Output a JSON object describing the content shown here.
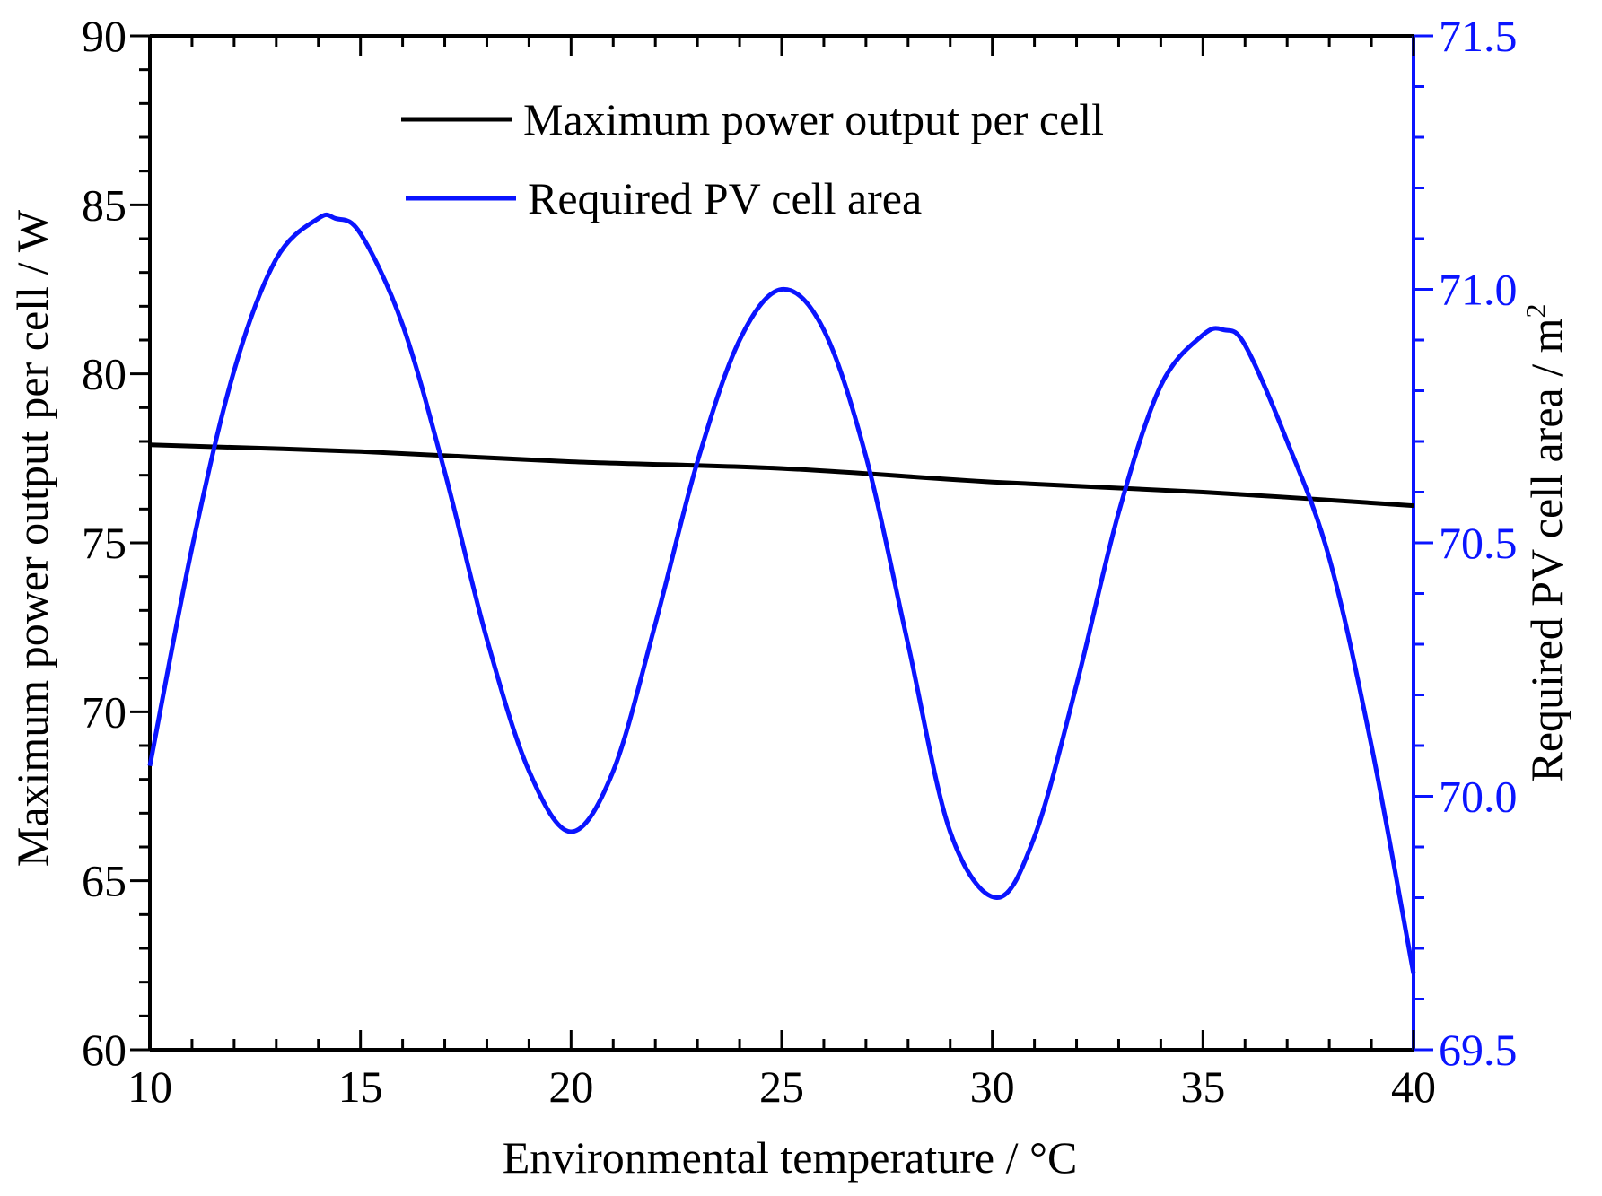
{
  "chart_data": {
    "type": "line",
    "title": "",
    "xlabel": "Environmental temperature /  °C",
    "ylabel_left": "Maximum power output per cell / W",
    "ylabel_right": "Required PV cell area / m",
    "ylabel_right_superscript": "2",
    "xlim": [
      10,
      40
    ],
    "ylim_left": [
      60,
      90
    ],
    "ylim_right": [
      69.5,
      71.5
    ],
    "x_ticks": [
      "10",
      "15",
      "20",
      "25",
      "30",
      "35",
      "40"
    ],
    "y_left_ticks": [
      "60",
      "65",
      "70",
      "75",
      "80",
      "85",
      "90"
    ],
    "y_right_ticks": [
      "69.5",
      "70.0",
      "70.5",
      "71.0",
      "71.5"
    ],
    "grid": false,
    "legend_position": "top-center",
    "colors": {
      "power": "#000000",
      "area": "#0a14ff"
    },
    "series": [
      {
        "name": "Maximum power output per cell",
        "axis": "left",
        "x": [
          10,
          15,
          20,
          25,
          30,
          35,
          40
        ],
        "values": [
          77.9,
          77.7,
          77.4,
          77.2,
          76.8,
          76.5,
          76.1
        ]
      },
      {
        "name": "Required PV cell area",
        "axis": "right",
        "x": [
          10,
          11,
          12,
          13,
          14,
          14.4,
          15,
          16,
          17,
          18,
          19,
          20,
          21,
          22,
          23,
          24,
          25,
          26,
          27,
          28,
          29,
          30.1,
          31,
          32,
          33,
          34,
          35,
          35.5,
          36,
          37,
          38,
          39,
          40
        ],
        "values": [
          70.06,
          70.49,
          70.84,
          71.06,
          71.14,
          71.14,
          71.11,
          70.93,
          70.64,
          70.31,
          70.05,
          69.93,
          70.05,
          70.34,
          70.66,
          70.9,
          71.0,
          70.92,
          70.67,
          70.3,
          69.93,
          69.8,
          69.92,
          70.22,
          70.56,
          70.81,
          70.91,
          70.92,
          70.89,
          70.7,
          70.47,
          70.1,
          69.65
        ]
      }
    ]
  }
}
